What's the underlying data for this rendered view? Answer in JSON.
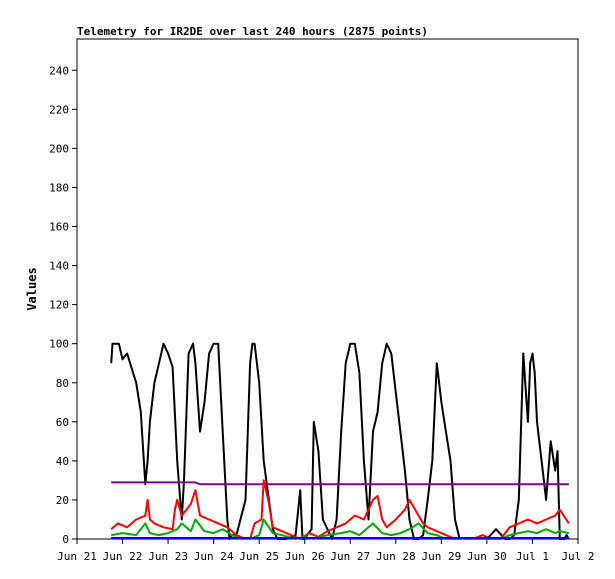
{
  "chart_data": {
    "type": "line",
    "title": "Telemetry for IR2DE over last 240 hours (2875 points)",
    "xlabel": "",
    "ylabel": "Values",
    "xlim": [
      0,
      11
    ],
    "ylim": [
      0,
      256
    ],
    "x_ticks": [
      {
        "pos": 0,
        "label": "Jun 21"
      },
      {
        "pos": 1,
        "label": "Jun 22"
      },
      {
        "pos": 2,
        "label": "Jun 23"
      },
      {
        "pos": 3,
        "label": "Jun 24"
      },
      {
        "pos": 4,
        "label": "Jun 25"
      },
      {
        "pos": 5,
        "label": "Jun 26"
      },
      {
        "pos": 6,
        "label": "Jun 27"
      },
      {
        "pos": 7,
        "label": "Jun 28"
      },
      {
        "pos": 8,
        "label": "Jun 29"
      },
      {
        "pos": 9,
        "label": "Jun 30"
      },
      {
        "pos": 10,
        "label": "Jul 1"
      },
      {
        "pos": 11,
        "label": "Jul 2"
      }
    ],
    "y_ticks": [
      0,
      20,
      40,
      60,
      80,
      100,
      120,
      140,
      160,
      180,
      200,
      220,
      240
    ],
    "grid": false,
    "series": [
      {
        "color": "#000000",
        "x": [
          0.75,
          0.78,
          0.92,
          1.0,
          1.1,
          1.3,
          1.4,
          1.5,
          1.55,
          1.6,
          1.7,
          1.8,
          1.9,
          2.0,
          2.1,
          2.2,
          2.25,
          2.3,
          2.35,
          2.45,
          2.55,
          2.6,
          2.7,
          2.8,
          2.9,
          3.0,
          3.1,
          3.2,
          3.3,
          3.35,
          3.4,
          3.5,
          3.7,
          3.8,
          3.85,
          3.9,
          4.0,
          4.1,
          4.3,
          4.4,
          4.6,
          4.8,
          4.9,
          4.95,
          5.0,
          5.05,
          5.15,
          5.2,
          5.3,
          5.4,
          5.6,
          5.7,
          5.8,
          5.9,
          6.0,
          6.1,
          6.2,
          6.3,
          6.4,
          6.5,
          6.6,
          6.7,
          6.8,
          6.9,
          7.0,
          7.1,
          7.2,
          7.3,
          7.4,
          7.5,
          7.6,
          7.7,
          7.8,
          7.9,
          8.0,
          8.1,
          8.2,
          8.3,
          8.4,
          8.5,
          8.6,
          8.8,
          9.0,
          9.2,
          9.4,
          9.5,
          9.6,
          9.7,
          9.8,
          9.9,
          9.95,
          10.0,
          10.05,
          10.1,
          10.2,
          10.3,
          10.4,
          10.5,
          10.55,
          10.6,
          10.7,
          10.75,
          10.8
        ],
        "values": [
          90,
          100,
          100,
          92,
          95,
          80,
          65,
          28,
          40,
          60,
          80,
          90,
          100,
          95,
          88,
          40,
          25,
          10,
          30,
          95,
          100,
          90,
          55,
          70,
          95,
          100,
          100,
          55,
          10,
          0,
          2,
          2,
          20,
          90,
          100,
          100,
          80,
          40,
          5,
          0,
          0,
          2,
          25,
          0,
          0,
          2,
          5,
          60,
          45,
          10,
          0,
          10,
          55,
          90,
          100,
          100,
          85,
          40,
          10,
          55,
          65,
          90,
          100,
          95,
          75,
          55,
          35,
          10,
          0,
          0,
          2,
          20,
          40,
          90,
          70,
          55,
          40,
          10,
          0,
          0,
          0,
          0,
          0,
          5,
          0,
          0,
          2,
          20,
          95,
          60,
          90,
          95,
          85,
          60,
          40,
          20,
          50,
          35,
          45,
          0,
          0,
          2,
          0
        ]
      },
      {
        "color": "#800080",
        "x": [
          0.75,
          2.6,
          2.7,
          10.8
        ],
        "values": [
          29,
          29,
          28,
          28
        ]
      },
      {
        "color": "#ff0000",
        "x": [
          0.75,
          0.9,
          1.1,
          1.3,
          1.5,
          1.55,
          1.6,
          1.7,
          1.9,
          2.1,
          2.15,
          2.2,
          2.3,
          2.5,
          2.6,
          2.7,
          2.9,
          3.1,
          3.3,
          3.5,
          3.7,
          3.8,
          3.9,
          4.05,
          4.1,
          4.2,
          4.3,
          4.5,
          4.7,
          4.9,
          5.1,
          5.3,
          5.5,
          5.7,
          5.9,
          6.1,
          6.3,
          6.5,
          6.6,
          6.7,
          6.8,
          7.0,
          7.2,
          7.3,
          7.5,
          7.6,
          7.7,
          7.9,
          8.1,
          8.3,
          8.5,
          8.7,
          8.9,
          9.1,
          9.3,
          9.5,
          9.7,
          9.9,
          10.1,
          10.3,
          10.5,
          10.6,
          10.8
        ],
        "values": [
          5,
          8,
          6,
          10,
          12,
          20,
          10,
          8,
          6,
          5,
          15,
          20,
          12,
          18,
          25,
          12,
          10,
          8,
          6,
          2,
          0,
          0,
          8,
          10,
          30,
          20,
          6,
          4,
          2,
          0,
          3,
          1,
          4,
          6,
          8,
          12,
          10,
          20,
          22,
          10,
          6,
          10,
          15,
          20,
          12,
          8,
          6,
          4,
          2,
          0,
          0,
          0,
          2,
          0,
          0,
          6,
          8,
          10,
          8,
          10,
          12,
          15,
          8
        ]
      },
      {
        "color": "#00aa00",
        "x": [
          0.75,
          1.0,
          1.3,
          1.5,
          1.6,
          1.8,
          2.0,
          2.2,
          2.3,
          2.5,
          2.6,
          2.8,
          3.0,
          3.2,
          3.4,
          3.6,
          3.8,
          4.0,
          4.1,
          4.3,
          4.5,
          4.8,
          5.0,
          5.2,
          5.5,
          5.8,
          6.0,
          6.2,
          6.4,
          6.5,
          6.7,
          6.9,
          7.1,
          7.3,
          7.5,
          7.7,
          7.9,
          8.1,
          8.3,
          8.5,
          8.8,
          9.0,
          9.3,
          9.5,
          9.7,
          9.9,
          10.1,
          10.3,
          10.5,
          10.6,
          10.8
        ],
        "values": [
          2,
          3,
          2,
          8,
          3,
          2,
          3,
          5,
          8,
          4,
          10,
          4,
          3,
          5,
          2,
          0,
          0,
          2,
          10,
          3,
          2,
          0,
          1,
          0,
          2,
          3,
          4,
          2,
          6,
          8,
          3,
          2,
          3,
          5,
          8,
          3,
          2,
          0,
          0,
          0,
          0,
          0,
          0,
          2,
          3,
          4,
          3,
          5,
          3,
          4,
          3
        ]
      },
      {
        "color": "#0000ff",
        "x": [
          0.75,
          10.8
        ],
        "values": [
          0.5,
          0.5
        ]
      }
    ]
  }
}
